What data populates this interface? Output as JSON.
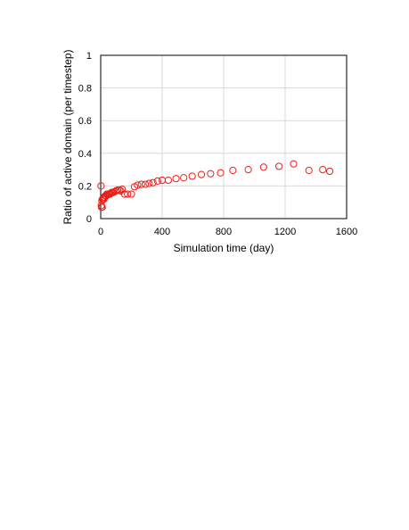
{
  "chart_data": {
    "type": "scatter",
    "xlabel": "Simulation time (day)",
    "ylabel": "Ratio of active domain (per timestep)",
    "xlim": [
      0,
      1600
    ],
    "ylim": [
      0,
      1
    ],
    "xticks": [
      "0",
      "400",
      "800",
      "1200",
      "1600"
    ],
    "yticks": [
      "0",
      "0.2",
      "0.4",
      "0.6",
      "0.8",
      "1"
    ],
    "grid": true,
    "marker": "open-circle",
    "marker_color": "#e8201a",
    "series": [
      {
        "x": [
          2,
          4,
          6,
          8,
          10,
          12,
          15,
          18,
          22,
          26,
          30,
          35,
          40,
          45,
          50,
          55,
          60,
          65,
          70,
          75,
          80,
          90,
          100,
          110,
          120,
          130,
          140,
          155,
          175,
          200,
          220,
          240,
          265,
          290,
          315,
          340,
          370,
          400,
          440,
          490,
          540,
          595,
          655,
          715,
          780,
          860,
          960,
          1060,
          1160,
          1255,
          1355,
          1445,
          1490
        ],
        "y": [
          0.2,
          0.08,
          0.07,
          0.11,
          0.07,
          0.12,
          0.12,
          0.13,
          0.12,
          0.13,
          0.14,
          0.14,
          0.15,
          0.145,
          0.15,
          0.15,
          0.15,
          0.155,
          0.16,
          0.16,
          0.16,
          0.165,
          0.17,
          0.175,
          0.175,
          0.17,
          0.18,
          0.15,
          0.15,
          0.15,
          0.195,
          0.205,
          0.21,
          0.21,
          0.215,
          0.22,
          0.23,
          0.235,
          0.235,
          0.245,
          0.25,
          0.26,
          0.27,
          0.275,
          0.28,
          0.295,
          0.3,
          0.315,
          0.32,
          0.335,
          0.295,
          0.3,
          0.29
        ]
      }
    ]
  }
}
